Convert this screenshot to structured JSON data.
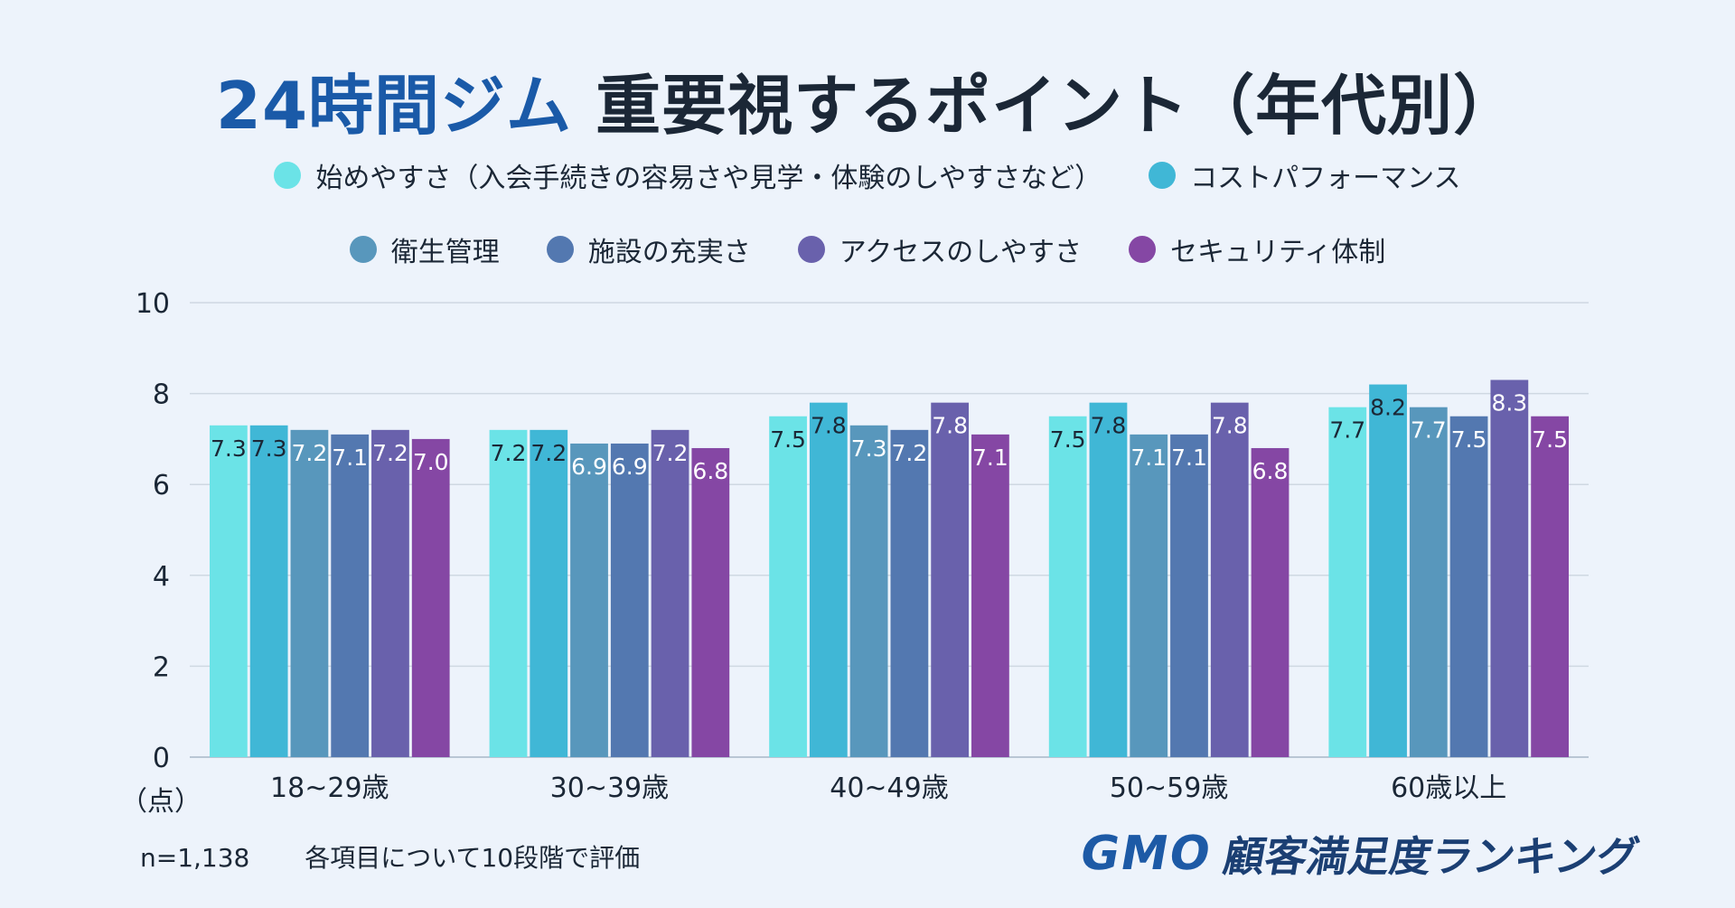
{
  "title": {
    "part1": "24時間ジム",
    "part2": "重要視するポイント（年代別）"
  },
  "footnote": {
    "n": "n=1,138",
    "note": "各項目について10段階で評価"
  },
  "brand": {
    "mark": "GMO",
    "text": "顧客満足度ランキング"
  },
  "chart_data": {
    "type": "bar",
    "categories": [
      "18~29歳",
      "30~39歳",
      "40~49歳",
      "50~59歳",
      "60歳以上"
    ],
    "series": [
      {
        "name": "始めやすさ（入会手続きの容易さや見学・体験のしやすさなど）",
        "color": "#6be3e7",
        "values": [
          7.3,
          7.2,
          7.5,
          7.5,
          7.7
        ]
      },
      {
        "name": "コストパフォーマンス",
        "color": "#40b7d6",
        "values": [
          7.3,
          7.2,
          7.8,
          7.8,
          8.2
        ]
      },
      {
        "name": "衛生管理",
        "color": "#5897bc",
        "values": [
          7.2,
          6.9,
          7.3,
          7.1,
          7.7
        ]
      },
      {
        "name": "施設の充実さ",
        "color": "#5378b0",
        "values": [
          7.1,
          6.9,
          7.2,
          7.1,
          7.5
        ]
      },
      {
        "name": "アクセスのしやすさ",
        "color": "#6961ac",
        "values": [
          7.2,
          7.2,
          7.8,
          7.8,
          8.3
        ]
      },
      {
        "name": "セキュリティ体制",
        "color": "#8547a4",
        "values": [
          7.0,
          6.8,
          7.1,
          6.8,
          7.5
        ]
      }
    ],
    "labels": [
      "7.3",
      "7.3",
      "7.2",
      "7.1",
      "7.2",
      "7.0",
      "7.2",
      "7.2",
      "6.9",
      "6.9",
      "7.2",
      "6.8",
      "7.5",
      "7.8",
      "7.3",
      "7.2",
      "7.8",
      "7.1",
      "7.5",
      "7.8",
      "7.1",
      "7.1",
      "7.8",
      "6.8",
      "7.7",
      "8.2",
      "7.7",
      "7.5",
      "8.3",
      "7.5"
    ],
    "yticks": [
      "0",
      "2",
      "4",
      "6",
      "8",
      "10"
    ],
    "ylim": [
      0,
      10
    ],
    "ylabel": "（点）",
    "grid": true,
    "legend": "top"
  }
}
